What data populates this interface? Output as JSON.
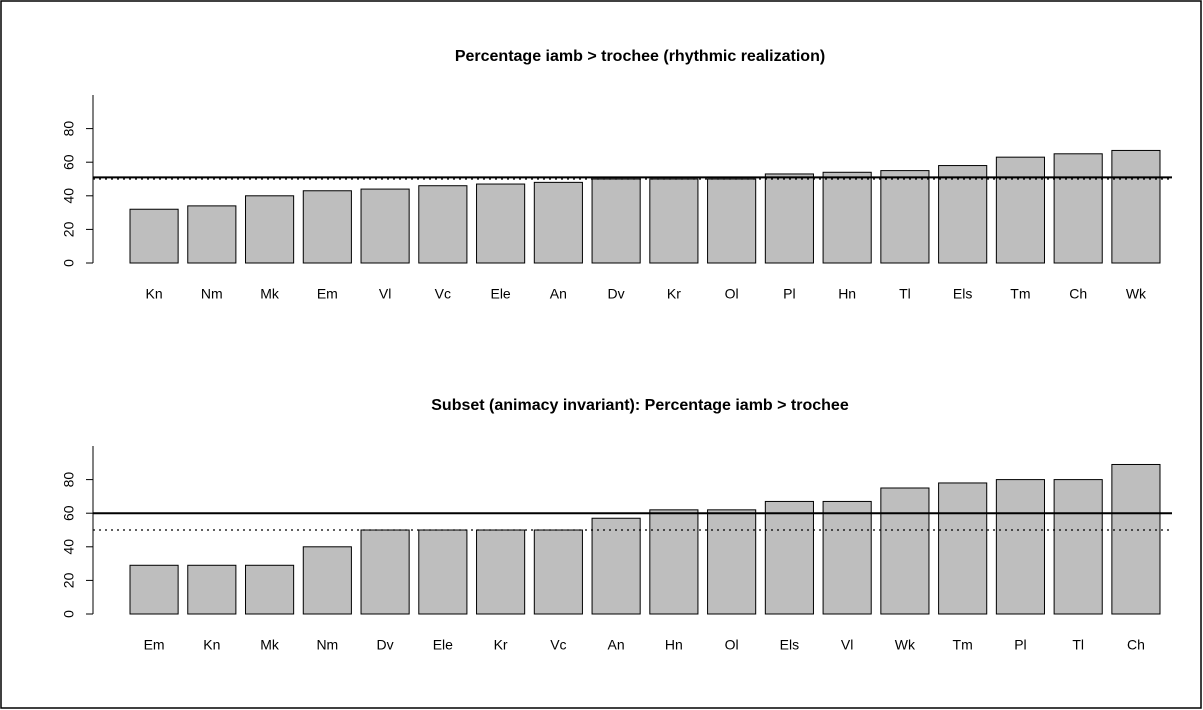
{
  "chart_data": [
    {
      "type": "bar",
      "title": "Percentage iamb > trochee (rhythmic realization)",
      "categories": [
        "Kn",
        "Nm",
        "Mk",
        "Em",
        "Vl",
        "Vc",
        "Ele",
        "An",
        "Dv",
        "Kr",
        "Ol",
        "Pl",
        "Hn",
        "Tl",
        "Els",
        "Tm",
        "Ch",
        "Wk"
      ],
      "values": [
        32,
        34,
        40,
        43,
        44,
        46,
        47,
        48,
        50,
        50,
        50,
        53,
        54,
        55,
        58,
        63,
        65,
        67
      ],
      "color": "#bebebe",
      "ylim": [
        0,
        100
      ],
      "yticks": [
        0,
        20,
        40,
        60,
        80
      ],
      "hlines": [
        {
          "value": 51,
          "style": "solid"
        },
        {
          "value": 50,
          "style": "dotted"
        }
      ]
    },
    {
      "type": "bar",
      "title": "Subset (animacy invariant): Percentage iamb > trochee",
      "categories": [
        "Em",
        "Kn",
        "Mk",
        "Nm",
        "Dv",
        "Ele",
        "Kr",
        "Vc",
        "An",
        "Hn",
        "Ol",
        "Els",
        "Vl",
        "Wk",
        "Tm",
        "Pl",
        "Tl",
        "Ch"
      ],
      "values": [
        29,
        29,
        29,
        40,
        50,
        50,
        50,
        50,
        57,
        62,
        62,
        67,
        67,
        75,
        78,
        80,
        80,
        89
      ],
      "color": "#bebebe",
      "ylim": [
        0,
        100
      ],
      "yticks": [
        0,
        20,
        40,
        60,
        80
      ],
      "hlines": [
        {
          "value": 60,
          "style": "solid"
        },
        {
          "value": 50,
          "style": "dotted"
        }
      ]
    }
  ]
}
